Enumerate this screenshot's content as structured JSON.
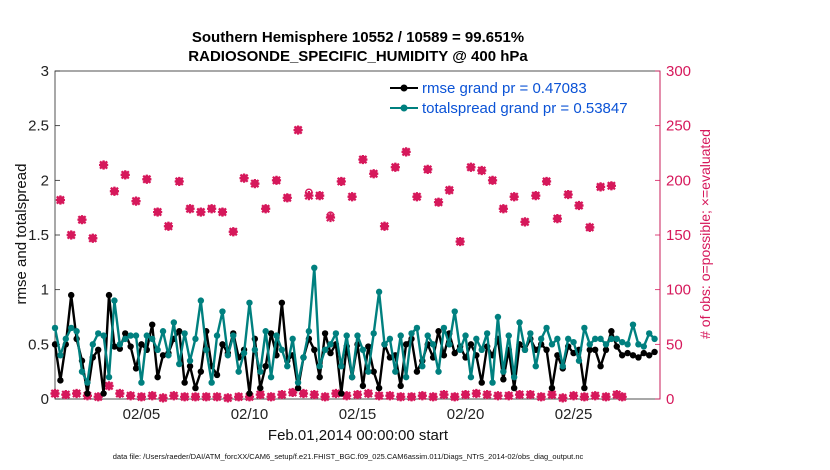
{
  "chart_data": {
    "type": "line",
    "title": "Southern Hemisphere 10552 / 10589 = 99.651%",
    "subtitle": "RADIOSONDE_SPECIFIC_HUMIDITY @ 400 hPa",
    "xlabel": "Feb.01,2014 00:00:00 start",
    "ylabel": "rmse and totalspread",
    "y2label": "# of obs: o=possible; ×=evaluated",
    "xlim": [
      1,
      29
    ],
    "ylim": [
      0,
      3
    ],
    "y2lim": [
      0,
      300
    ],
    "x_ticks": [
      5,
      10,
      15,
      20,
      25
    ],
    "x_ticklabels": [
      "02/05",
      "02/10",
      "02/15",
      "02/20",
      "02/25"
    ],
    "y_ticks": [
      0,
      0.5,
      1,
      1.5,
      2,
      2.5,
      3
    ],
    "y_ticklabels": [
      "0",
      "0.5",
      "1",
      "1.5",
      "2",
      "2.5",
      "3"
    ],
    "y2_ticks": [
      0,
      50,
      100,
      150,
      200,
      250,
      300
    ],
    "y2_ticklabels": [
      "0",
      "50",
      "100",
      "150",
      "200",
      "250",
      "300"
    ],
    "legend": [
      "rmse grand pr = 0.47083",
      "totalspread grand pr = 0.53847"
    ],
    "legend_position": "top-right",
    "footnote": "data file: /Users/raeder/DAI/ATM_forcXX/CAM6_setup/f.e21.FHIST_BGC.f09_025.CAM6assim.011/Diags_NTrS_2014-02/obs_diag_output.nc",
    "colors": {
      "rmse": "#000000",
      "totalspread": "#00807f",
      "obs": "#d6185b",
      "legend_text": "#0b53d6"
    },
    "x_step_days": 0.25,
    "x_start": 1.0,
    "series": [
      {
        "name": "rmse",
        "values": [
          0.5,
          0.17,
          0.5,
          0.95,
          0.55,
          0.35,
          0.05,
          0.38,
          0.45,
          0.05,
          0.95,
          0.48,
          0.46,
          0.6,
          0.48,
          0.28,
          0.5,
          0.45,
          0.68,
          0.2,
          0.4,
          0.42,
          0.55,
          0.62,
          0.15,
          0.3,
          0.1,
          0.25,
          0.62,
          0.3,
          0.22,
          0.5,
          0.42,
          0.6,
          0.38,
          0.45,
          0.05,
          0.55,
          0.1,
          0.3,
          0.6,
          0.4,
          0.88,
          0.35,
          0.4,
          0.1,
          0.38,
          0.55,
          0.45,
          0.2,
          0.6,
          0.42,
          0.5,
          0.05,
          0.48,
          0.2,
          0.5,
          0.12,
          0.48,
          0.25,
          0.1,
          0.5,
          0.38,
          0.4,
          0.12,
          0.5,
          0.55,
          0.25,
          0.35,
          0.5,
          0.38,
          0.62,
          0.4,
          0.6,
          0.42,
          0.48,
          0.38,
          0.5,
          0.4,
          0.15,
          0.48,
          0.4,
          0.55,
          0.18,
          0.45,
          0.1,
          0.5,
          0.45,
          0.55,
          0.45,
          0.5,
          0.45,
          0.1,
          0.4,
          0.28,
          0.48,
          0.42,
          0.45,
          0.1,
          0.45,
          0.45,
          0.3,
          0.45,
          0.62,
          0.48,
          0.4,
          0.42,
          0.4,
          0.38,
          0.42,
          0.4,
          0.43
        ]
      },
      {
        "name": "totalspread",
        "values": [
          0.65,
          0.4,
          0.55,
          0.65,
          0.62,
          0.25,
          0.15,
          0.5,
          0.6,
          0.58,
          0.2,
          0.9,
          0.5,
          0.55,
          0.58,
          0.58,
          0.15,
          0.58,
          0.55,
          0.45,
          0.62,
          0.4,
          0.7,
          0.32,
          0.6,
          0.35,
          0.55,
          0.9,
          0.45,
          0.15,
          0.58,
          0.8,
          0.4,
          0.58,
          0.25,
          0.42,
          0.88,
          0.45,
          0.25,
          0.62,
          0.2,
          0.58,
          0.45,
          0.3,
          0.55,
          0.15,
          0.38,
          0.62,
          1.2,
          0.3,
          0.45,
          0.5,
          0.6,
          0.3,
          0.58,
          0.2,
          0.58,
          0.45,
          0.25,
          0.6,
          0.98,
          0.5,
          0.55,
          0.25,
          0.58,
          0.2,
          0.6,
          0.65,
          0.3,
          0.58,
          0.5,
          0.25,
          0.65,
          0.5,
          0.8,
          0.45,
          0.58,
          0.2,
          0.55,
          0.45,
          0.6,
          0.15,
          0.75,
          0.25,
          0.58,
          0.2,
          0.7,
          0.45,
          0.6,
          0.3,
          0.55,
          0.65,
          0.5,
          0.55,
          0.3,
          0.55,
          0.52,
          0.35,
          0.65,
          0.5,
          0.55,
          0.55,
          0.5,
          0.55,
          0.55,
          0.52,
          0.5,
          0.68,
          0.5,
          0.48,
          0.6,
          0.55
        ]
      },
      {
        "name": "obs_possible",
        "axis": "right",
        "values": [
          5,
          182,
          4,
          150,
          5,
          164,
          3,
          147,
          2,
          214,
          12,
          190,
          5,
          205,
          3,
          181,
          2,
          201,
          3,
          171,
          1,
          158,
          3,
          199,
          2,
          174,
          2,
          171,
          2,
          174,
          2,
          171,
          1,
          153,
          2,
          202,
          2,
          197,
          4,
          174,
          2,
          200,
          4,
          184,
          6,
          246,
          5,
          189,
          4,
          186,
          2,
          168,
          5,
          199,
          3,
          185,
          4,
          219,
          5,
          206,
          3,
          158,
          3,
          212,
          2,
          226,
          2,
          185,
          3,
          210,
          2,
          180,
          4,
          191,
          2,
          144,
          4,
          212,
          5,
          209,
          4,
          200,
          3,
          174,
          3,
          185,
          4,
          162,
          4,
          186,
          2,
          199,
          4,
          165,
          1,
          187,
          3,
          177,
          2,
          157,
          3,
          194,
          2,
          195,
          4,
          2
        ]
      },
      {
        "name": "obs_evaluated",
        "axis": "right",
        "values": [
          5,
          182,
          4,
          150,
          5,
          164,
          3,
          147,
          2,
          214,
          12,
          190,
          5,
          205,
          3,
          181,
          2,
          201,
          3,
          171,
          1,
          158,
          3,
          199,
          2,
          174,
          2,
          171,
          2,
          174,
          2,
          171,
          1,
          153,
          2,
          202,
          2,
          197,
          4,
          174,
          2,
          200,
          4,
          184,
          6,
          246,
          5,
          186,
          4,
          186,
          2,
          166,
          5,
          199,
          3,
          185,
          4,
          219,
          5,
          206,
          3,
          158,
          3,
          212,
          2,
          226,
          2,
          185,
          3,
          210,
          2,
          180,
          4,
          191,
          2,
          144,
          4,
          212,
          5,
          209,
          4,
          200,
          3,
          174,
          3,
          185,
          4,
          162,
          4,
          186,
          2,
          199,
          4,
          165,
          1,
          187,
          3,
          177,
          2,
          157,
          3,
          194,
          2,
          195,
          4,
          2
        ]
      }
    ]
  }
}
